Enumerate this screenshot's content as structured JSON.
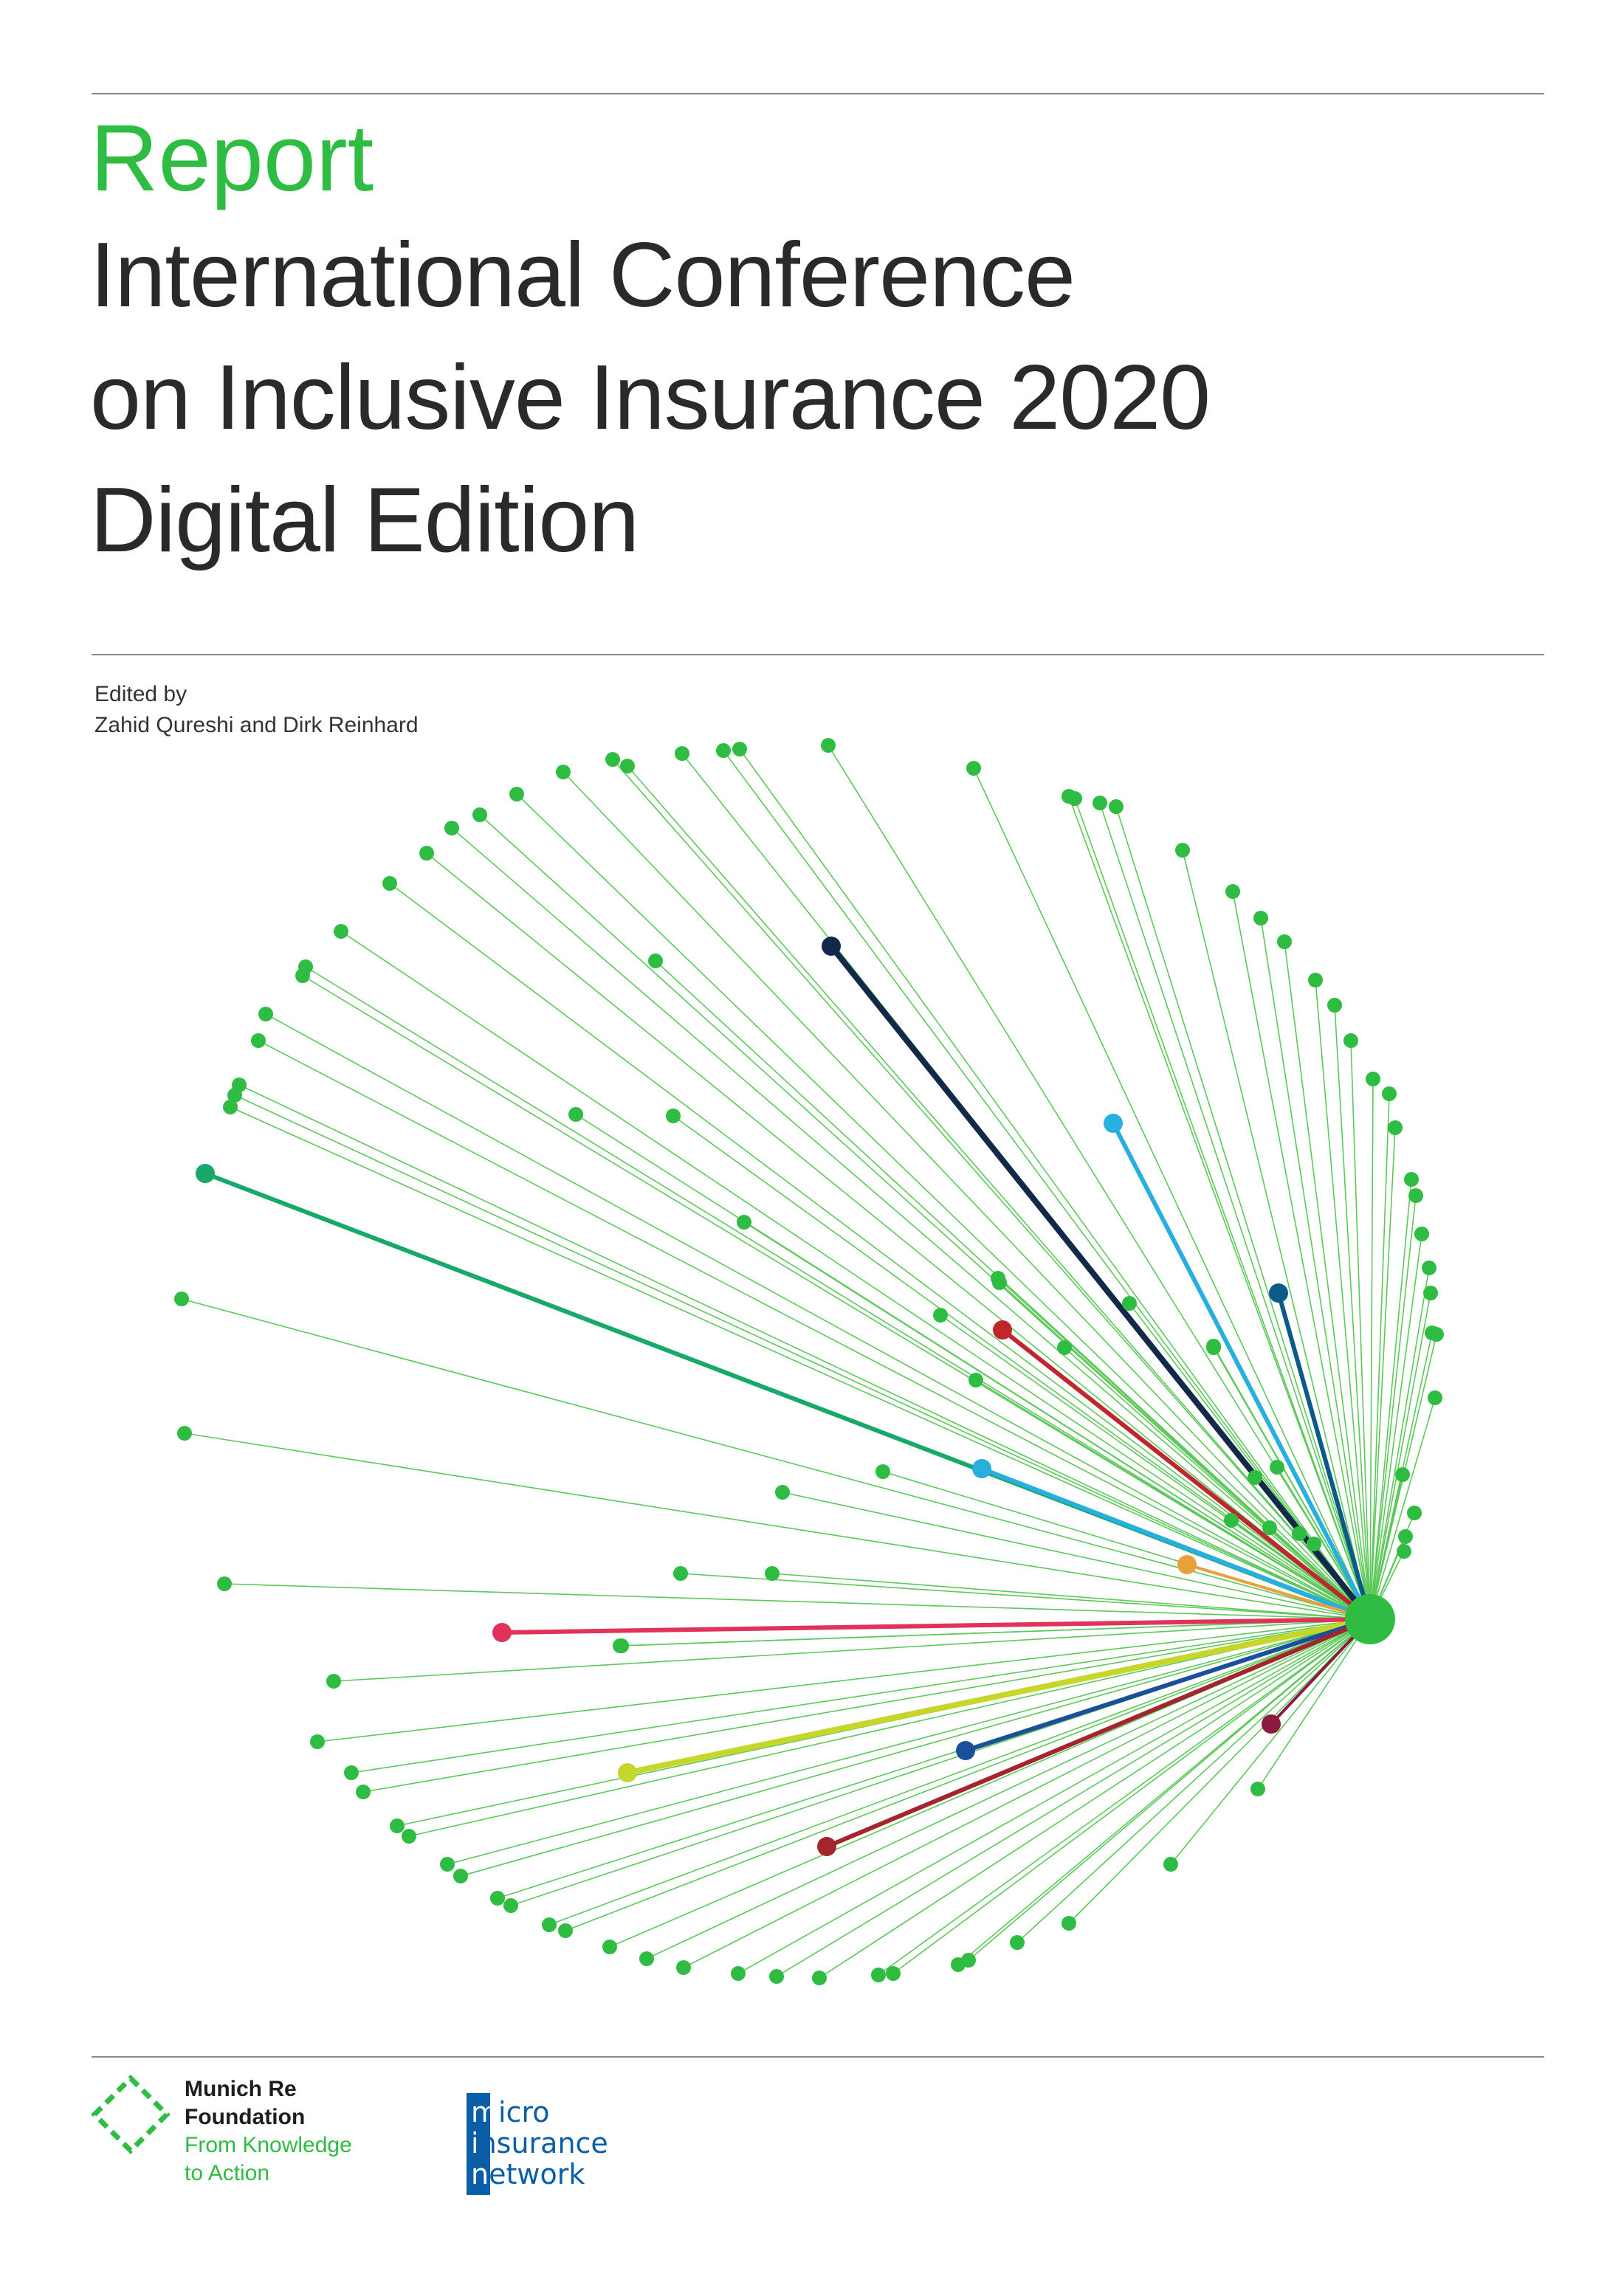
{
  "cover": {
    "report_label": "Report",
    "title_lines": [
      "International Conference",
      "on Inclusive Insurance 2020",
      "Digital Edition"
    ],
    "edited_by_label": "Edited by",
    "editors": "Zahid Qureshi and Dirk Reinhard"
  },
  "logos": {
    "munich_re_foundation": {
      "line1": "Munich Re",
      "line2": "Foundation",
      "tagline1": "From Knowledge",
      "tagline2": "to Action"
    },
    "microinsurance_network": {
      "line1_first": "m",
      "line1_rest": "icro",
      "line2_first": "i",
      "line2_rest": "nsurance",
      "line3_first": "n",
      "line3_rest": "etwork"
    }
  },
  "colors": {
    "accent_green": "#2fbc42",
    "title_gray": "#2a2a2a",
    "network_blue": "#0a5ea8",
    "line_green": "#5cc85a",
    "highlight_lines": [
      "#12294a",
      "#29aee0",
      "#0c5a8a",
      "#c0272d",
      "#17a86a",
      "#e8a03a",
      "#e0325a",
      "#c7d62a",
      "#1b4f9a",
      "#a3262c",
      "#8a1b3e"
    ]
  }
}
